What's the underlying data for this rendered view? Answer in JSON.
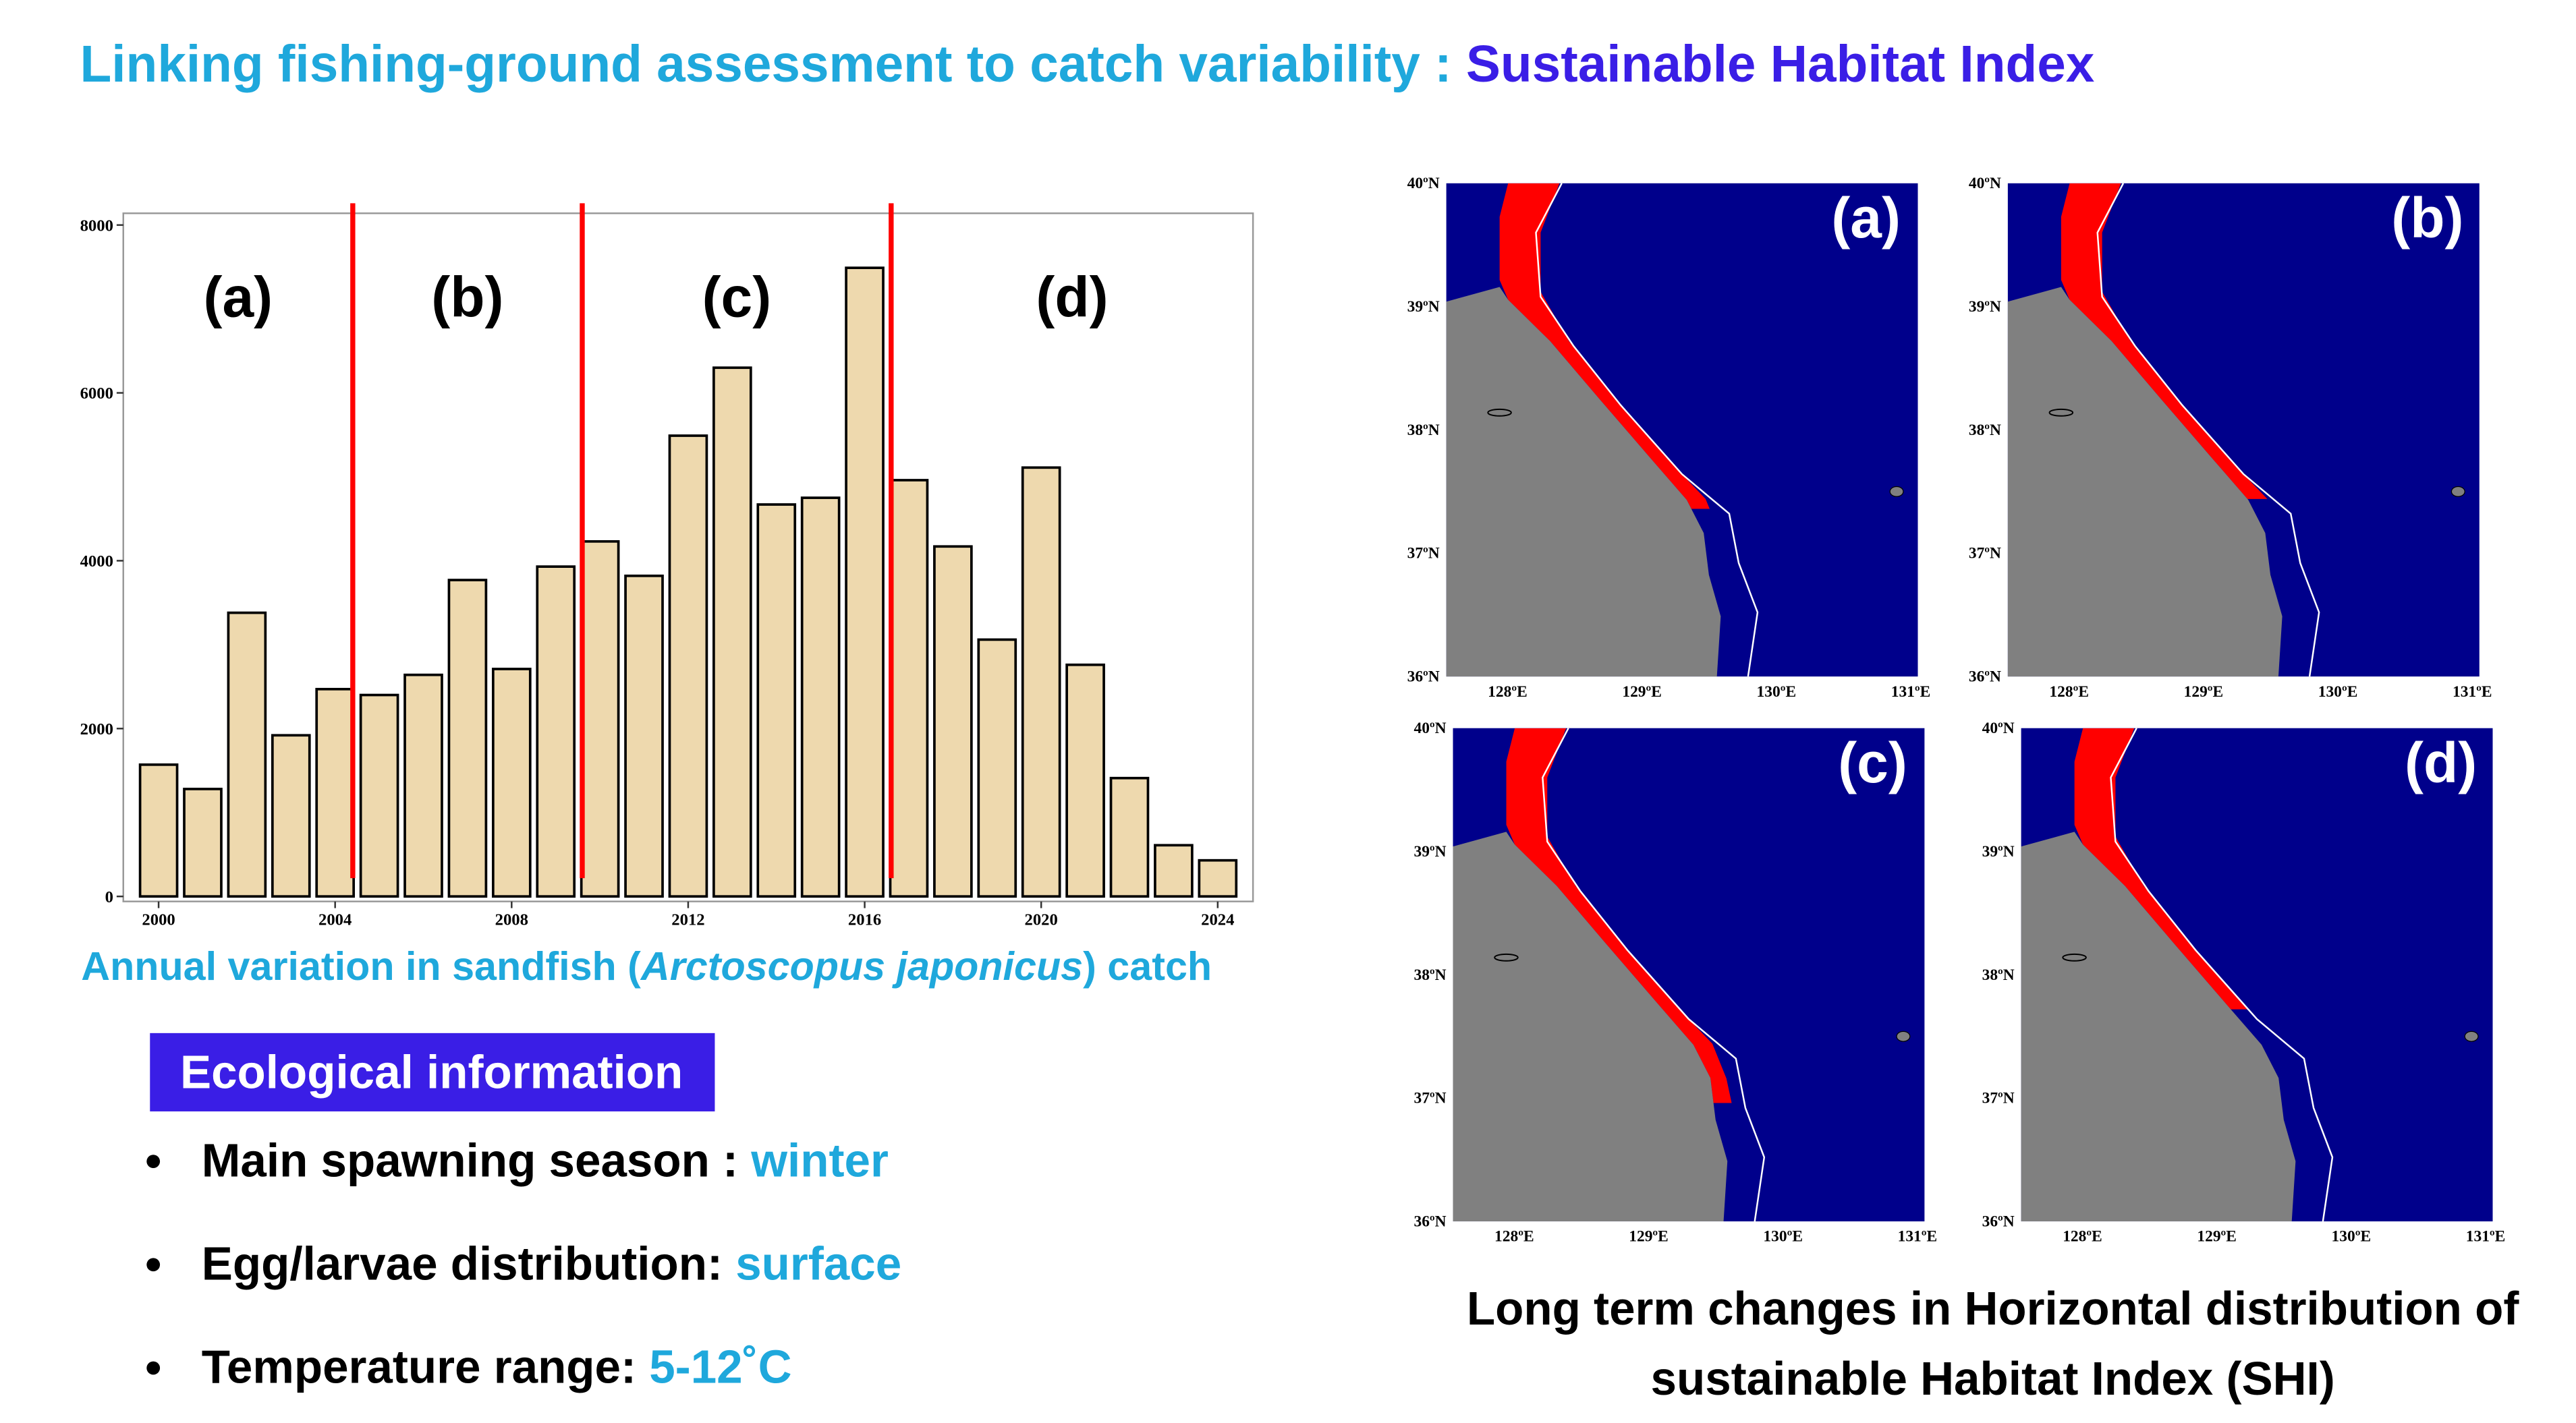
{
  "header": {
    "title_parts": [
      "Linking fishing-ground assessment to catch variability : ",
      "Sustainable Habitat Index"
    ]
  },
  "chart_data": {
    "type": "bar",
    "x": [
      2000,
      2001,
      2002,
      2003,
      2004,
      2005,
      2006,
      2007,
      2008,
      2009,
      2010,
      2011,
      2012,
      2013,
      2014,
      2015,
      2016,
      2017,
      2018,
      2019,
      2020,
      2021,
      2022,
      2023,
      2024
    ],
    "values": [
      1570,
      1280,
      3380,
      1920,
      2470,
      2400,
      2640,
      3770,
      2710,
      3930,
      4230,
      3820,
      5490,
      6300,
      4670,
      4750,
      7490,
      4960,
      4170,
      3060,
      5110,
      2760,
      1410,
      610,
      430
    ],
    "color": "#eed9ae",
    "xlim": [
      1999.2,
      2024.8
    ],
    "xticks": [
      2000,
      2004,
      2008,
      2012,
      2016,
      2020,
      2024
    ],
    "ylim": [
      -60,
      8140
    ],
    "yticks": [
      0,
      2000,
      4000,
      6000,
      8000
    ],
    "period_breaks": [
      2004.4,
      2009.6,
      2016.6
    ],
    "break_color": "#ff0000",
    "period_labels": [
      "(a)",
      "(b)",
      "(c)",
      "(d)"
    ],
    "caption_parts": [
      "Annual variation in sandfish (",
      "Arctoscopus japonicus",
      ") catch"
    ]
  },
  "ecological": {
    "heading": "Ecological information",
    "items": [
      {
        "label": "Main spawning season : ",
        "value": "winter"
      },
      {
        "label": "Egg/larvae distribution: ",
        "value": "surface"
      },
      {
        "label": "Temperature range: ",
        "value": "5-12˚C"
      }
    ]
  },
  "maps": {
    "lat_labels": [
      "40ºN",
      "39ºN",
      "38ºN",
      "37ºN",
      "36ºN"
    ],
    "lon_labels": [
      "128ºE",
      "129ºE",
      "130ºE",
      "131ºE"
    ],
    "panels": [
      "(a)",
      "(b)",
      "(c)",
      "(d)"
    ],
    "caption": [
      "Long term changes in Horizontal distribution of",
      "sustainable Habitat Index (SHI)"
    ]
  }
}
